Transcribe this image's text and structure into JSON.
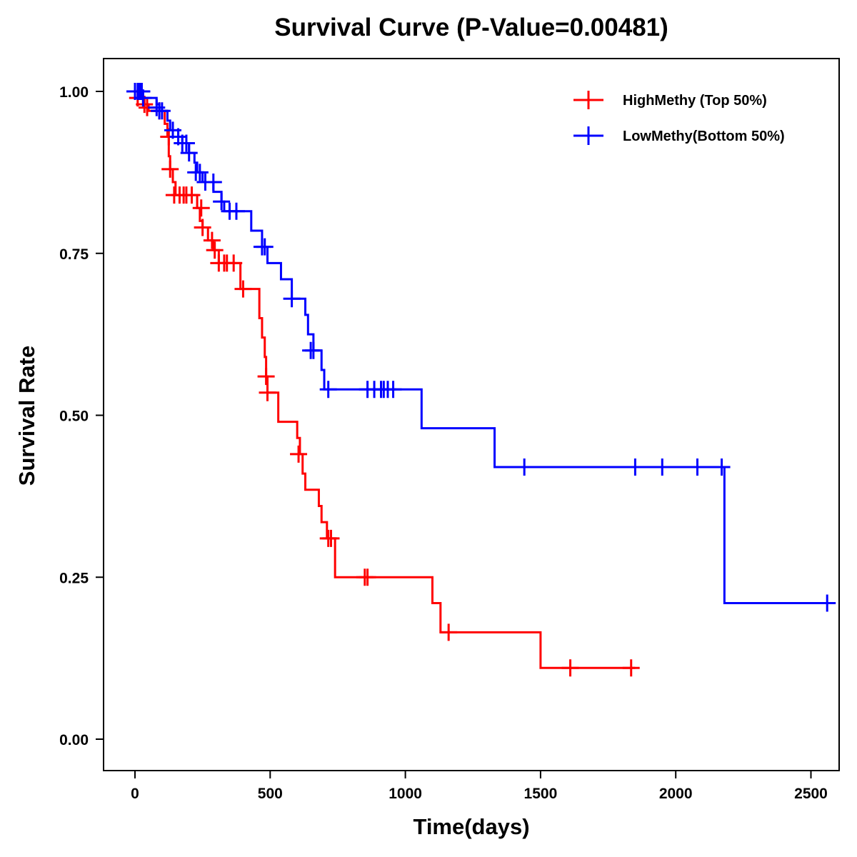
{
  "chart_data": {
    "type": "line",
    "subtype": "kaplan-meier-step",
    "title": "Survival Curve (P-Value=0.00481)",
    "xlabel": "Time(days)",
    "ylabel": "Survival Rate",
    "xlim": [
      -110,
      2620
    ],
    "ylim": [
      -0.05,
      1.05
    ],
    "xticks": [
      0,
      500,
      1000,
      1500,
      2000,
      2500
    ],
    "xtick_labels": [
      "0",
      "500",
      "1000",
      "1500",
      "2000",
      "2500"
    ],
    "yticks": [
      0.0,
      0.25,
      0.5,
      0.75,
      1.0
    ],
    "ytick_labels": [
      "0.00",
      "0.25",
      "0.50",
      "0.75",
      "1.00"
    ],
    "grid": false,
    "legend_position": "top-right",
    "series": [
      {
        "name": "HighMethy (Top 50%)",
        "color": "#ff0000",
        "steps": [
          [
            0,
            1.0
          ],
          [
            20,
            0.99
          ],
          [
            30,
            0.98
          ],
          [
            50,
            0.97
          ],
          [
            110,
            0.95
          ],
          [
            120,
            0.93
          ],
          [
            125,
            0.9
          ],
          [
            130,
            0.88
          ],
          [
            140,
            0.86
          ],
          [
            150,
            0.84
          ],
          [
            230,
            0.82
          ],
          [
            240,
            0.8
          ],
          [
            250,
            0.79
          ],
          [
            270,
            0.77
          ],
          [
            290,
            0.755
          ],
          [
            310,
            0.735
          ],
          [
            390,
            0.695
          ],
          [
            460,
            0.65
          ],
          [
            470,
            0.62
          ],
          [
            480,
            0.59
          ],
          [
            485,
            0.56
          ],
          [
            490,
            0.535
          ],
          [
            530,
            0.49
          ],
          [
            600,
            0.465
          ],
          [
            610,
            0.44
          ],
          [
            620,
            0.41
          ],
          [
            630,
            0.385
          ],
          [
            680,
            0.36
          ],
          [
            690,
            0.335
          ],
          [
            710,
            0.31
          ],
          [
            740,
            0.25
          ],
          [
            1100,
            0.21
          ],
          [
            1130,
            0.165
          ],
          [
            1500,
            0.11
          ]
        ],
        "end_time": 1850,
        "censored": [
          [
            10,
            0.99
          ],
          [
            35,
            0.98
          ],
          [
            45,
            0.975
          ],
          [
            90,
            0.97
          ],
          [
            125,
            0.93
          ],
          [
            130,
            0.88
          ],
          [
            145,
            0.84
          ],
          [
            165,
            0.84
          ],
          [
            180,
            0.84
          ],
          [
            190,
            0.84
          ],
          [
            210,
            0.84
          ],
          [
            245,
            0.82
          ],
          [
            250,
            0.79
          ],
          [
            285,
            0.77
          ],
          [
            295,
            0.755
          ],
          [
            310,
            0.735
          ],
          [
            330,
            0.735
          ],
          [
            340,
            0.735
          ],
          [
            365,
            0.735
          ],
          [
            400,
            0.695
          ],
          [
            485,
            0.56
          ],
          [
            490,
            0.535
          ],
          [
            605,
            0.44
          ],
          [
            715,
            0.31
          ],
          [
            725,
            0.31
          ],
          [
            850,
            0.25
          ],
          [
            860,
            0.25
          ],
          [
            1160,
            0.165
          ],
          [
            1610,
            0.11
          ],
          [
            1835,
            0.11
          ]
        ]
      },
      {
        "name": "LowMethy(Bottom 50%)",
        "color": "#0000ff",
        "steps": [
          [
            0,
            1.0
          ],
          [
            30,
            0.99
          ],
          [
            80,
            0.98
          ],
          [
            90,
            0.97
          ],
          [
            120,
            0.955
          ],
          [
            130,
            0.94
          ],
          [
            160,
            0.93
          ],
          [
            175,
            0.92
          ],
          [
            200,
            0.905
          ],
          [
            220,
            0.89
          ],
          [
            230,
            0.875
          ],
          [
            250,
            0.86
          ],
          [
            290,
            0.845
          ],
          [
            320,
            0.83
          ],
          [
            330,
            0.815
          ],
          [
            430,
            0.785
          ],
          [
            470,
            0.76
          ],
          [
            490,
            0.735
          ],
          [
            540,
            0.71
          ],
          [
            580,
            0.68
          ],
          [
            630,
            0.655
          ],
          [
            640,
            0.625
          ],
          [
            660,
            0.6
          ],
          [
            690,
            0.57
          ],
          [
            700,
            0.54
          ],
          [
            1060,
            0.48
          ],
          [
            1330,
            0.42
          ],
          [
            2180,
            0.21
          ]
        ],
        "end_time": 2560,
        "censored": [
          [
            0,
            1.0
          ],
          [
            10,
            1.0
          ],
          [
            15,
            1.0
          ],
          [
            20,
            1.0
          ],
          [
            25,
            1.0
          ],
          [
            30,
            0.99
          ],
          [
            80,
            0.975
          ],
          [
            90,
            0.97
          ],
          [
            100,
            0.97
          ],
          [
            140,
            0.94
          ],
          [
            160,
            0.93
          ],
          [
            175,
            0.92
          ],
          [
            190,
            0.92
          ],
          [
            200,
            0.905
          ],
          [
            225,
            0.875
          ],
          [
            240,
            0.875
          ],
          [
            260,
            0.86
          ],
          [
            290,
            0.86
          ],
          [
            320,
            0.83
          ],
          [
            350,
            0.815
          ],
          [
            375,
            0.815
          ],
          [
            470,
            0.76
          ],
          [
            480,
            0.76
          ],
          [
            580,
            0.68
          ],
          [
            650,
            0.6
          ],
          [
            660,
            0.6
          ],
          [
            715,
            0.54
          ],
          [
            860,
            0.54
          ],
          [
            885,
            0.54
          ],
          [
            910,
            0.54
          ],
          [
            920,
            0.54
          ],
          [
            935,
            0.54
          ],
          [
            955,
            0.54
          ],
          [
            1440,
            0.42
          ],
          [
            1850,
            0.42
          ],
          [
            1950,
            0.42
          ],
          [
            2080,
            0.42
          ],
          [
            2170,
            0.42
          ],
          [
            2560,
            0.21
          ]
        ]
      }
    ]
  }
}
